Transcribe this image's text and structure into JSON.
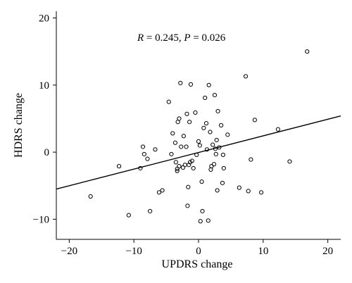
{
  "chart_data": {
    "type": "scatter",
    "title": "",
    "xlabel": "UPDRS change",
    "ylabel": "HDRS change",
    "xlim": [
      -22,
      22
    ],
    "ylim": [
      -13,
      21
    ],
    "xticks": [
      -20,
      -10,
      0,
      10,
      20
    ],
    "yticks": [
      -10,
      0,
      10,
      20
    ],
    "xtick_labels": [
      "−20",
      "−10",
      "0",
      "10",
      "20"
    ],
    "ytick_labels": [
      "−10",
      "0",
      "10",
      "20"
    ],
    "grid": false,
    "annotation": {
      "r_symbol": "R",
      "r_value": " = 0.245, ",
      "p_symbol": "P",
      "p_value": " = 0.026"
    },
    "fit_line": {
      "x": [
        -22,
        22
      ],
      "y": [
        -5.5,
        5.4
      ]
    },
    "series": [
      {
        "x": [
          16.8,
          -16.7,
          -12.3,
          -10.8,
          -9,
          -8.6,
          -8.4,
          -7.9,
          -7.5,
          -6.7,
          -6.1,
          -5.6,
          -4.6,
          -4.2,
          -4,
          -3.6,
          -3.5,
          -3.3,
          -3.3,
          -3.2,
          -3,
          -3,
          -2.8,
          -2.7,
          -2.4,
          -2.3,
          -2.1,
          -1.9,
          -1.8,
          -1.7,
          -1.6,
          -1.5,
          -1.4,
          -1.3,
          -1.2,
          -1,
          -0.8,
          -0.5,
          -0.3,
          0,
          0.2,
          0.3,
          0.5,
          0.6,
          0.8,
          1,
          1.2,
          1.3,
          1.5,
          1.6,
          1.8,
          1.9,
          2,
          2.2,
          2.4,
          2.5,
          2.6,
          2.7,
          2.8,
          2.9,
          3,
          3.2,
          3.5,
          3.7,
          3.8,
          3.9,
          4.5,
          6.3,
          7.3,
          7.7,
          8.1,
          8.7,
          9.7,
          12.3,
          14.1
        ],
        "y": [
          15,
          -6.6,
          -2.1,
          -9.4,
          -2.4,
          0.8,
          -0.3,
          -1,
          -8.8,
          0.4,
          -6,
          -5.7,
          7.5,
          -0.3,
          2.8,
          1.4,
          -1.5,
          -2.8,
          -2.5,
          4.5,
          5,
          -2.1,
          10.3,
          0.8,
          -2.3,
          2.4,
          -1.9,
          0.8,
          5.7,
          -8,
          -5.2,
          -1.9,
          4.5,
          -1.5,
          10.1,
          -1.3,
          -2.4,
          5.9,
          -0.4,
          1.6,
          1,
          -10.3,
          -4.4,
          -8.8,
          3.6,
          8.1,
          4.3,
          0.4,
          -10.2,
          10,
          3,
          -2.6,
          -2.1,
          1.1,
          -1.8,
          8.5,
          0.5,
          -0.3,
          1.8,
          -5.7,
          6.1,
          0.7,
          4,
          -4.6,
          -0.4,
          -2.4,
          2.6,
          -5.3,
          11.3,
          -5.8,
          -1.1,
          4.8,
          -6,
          3.4,
          -1.4
        ]
      }
    ]
  }
}
